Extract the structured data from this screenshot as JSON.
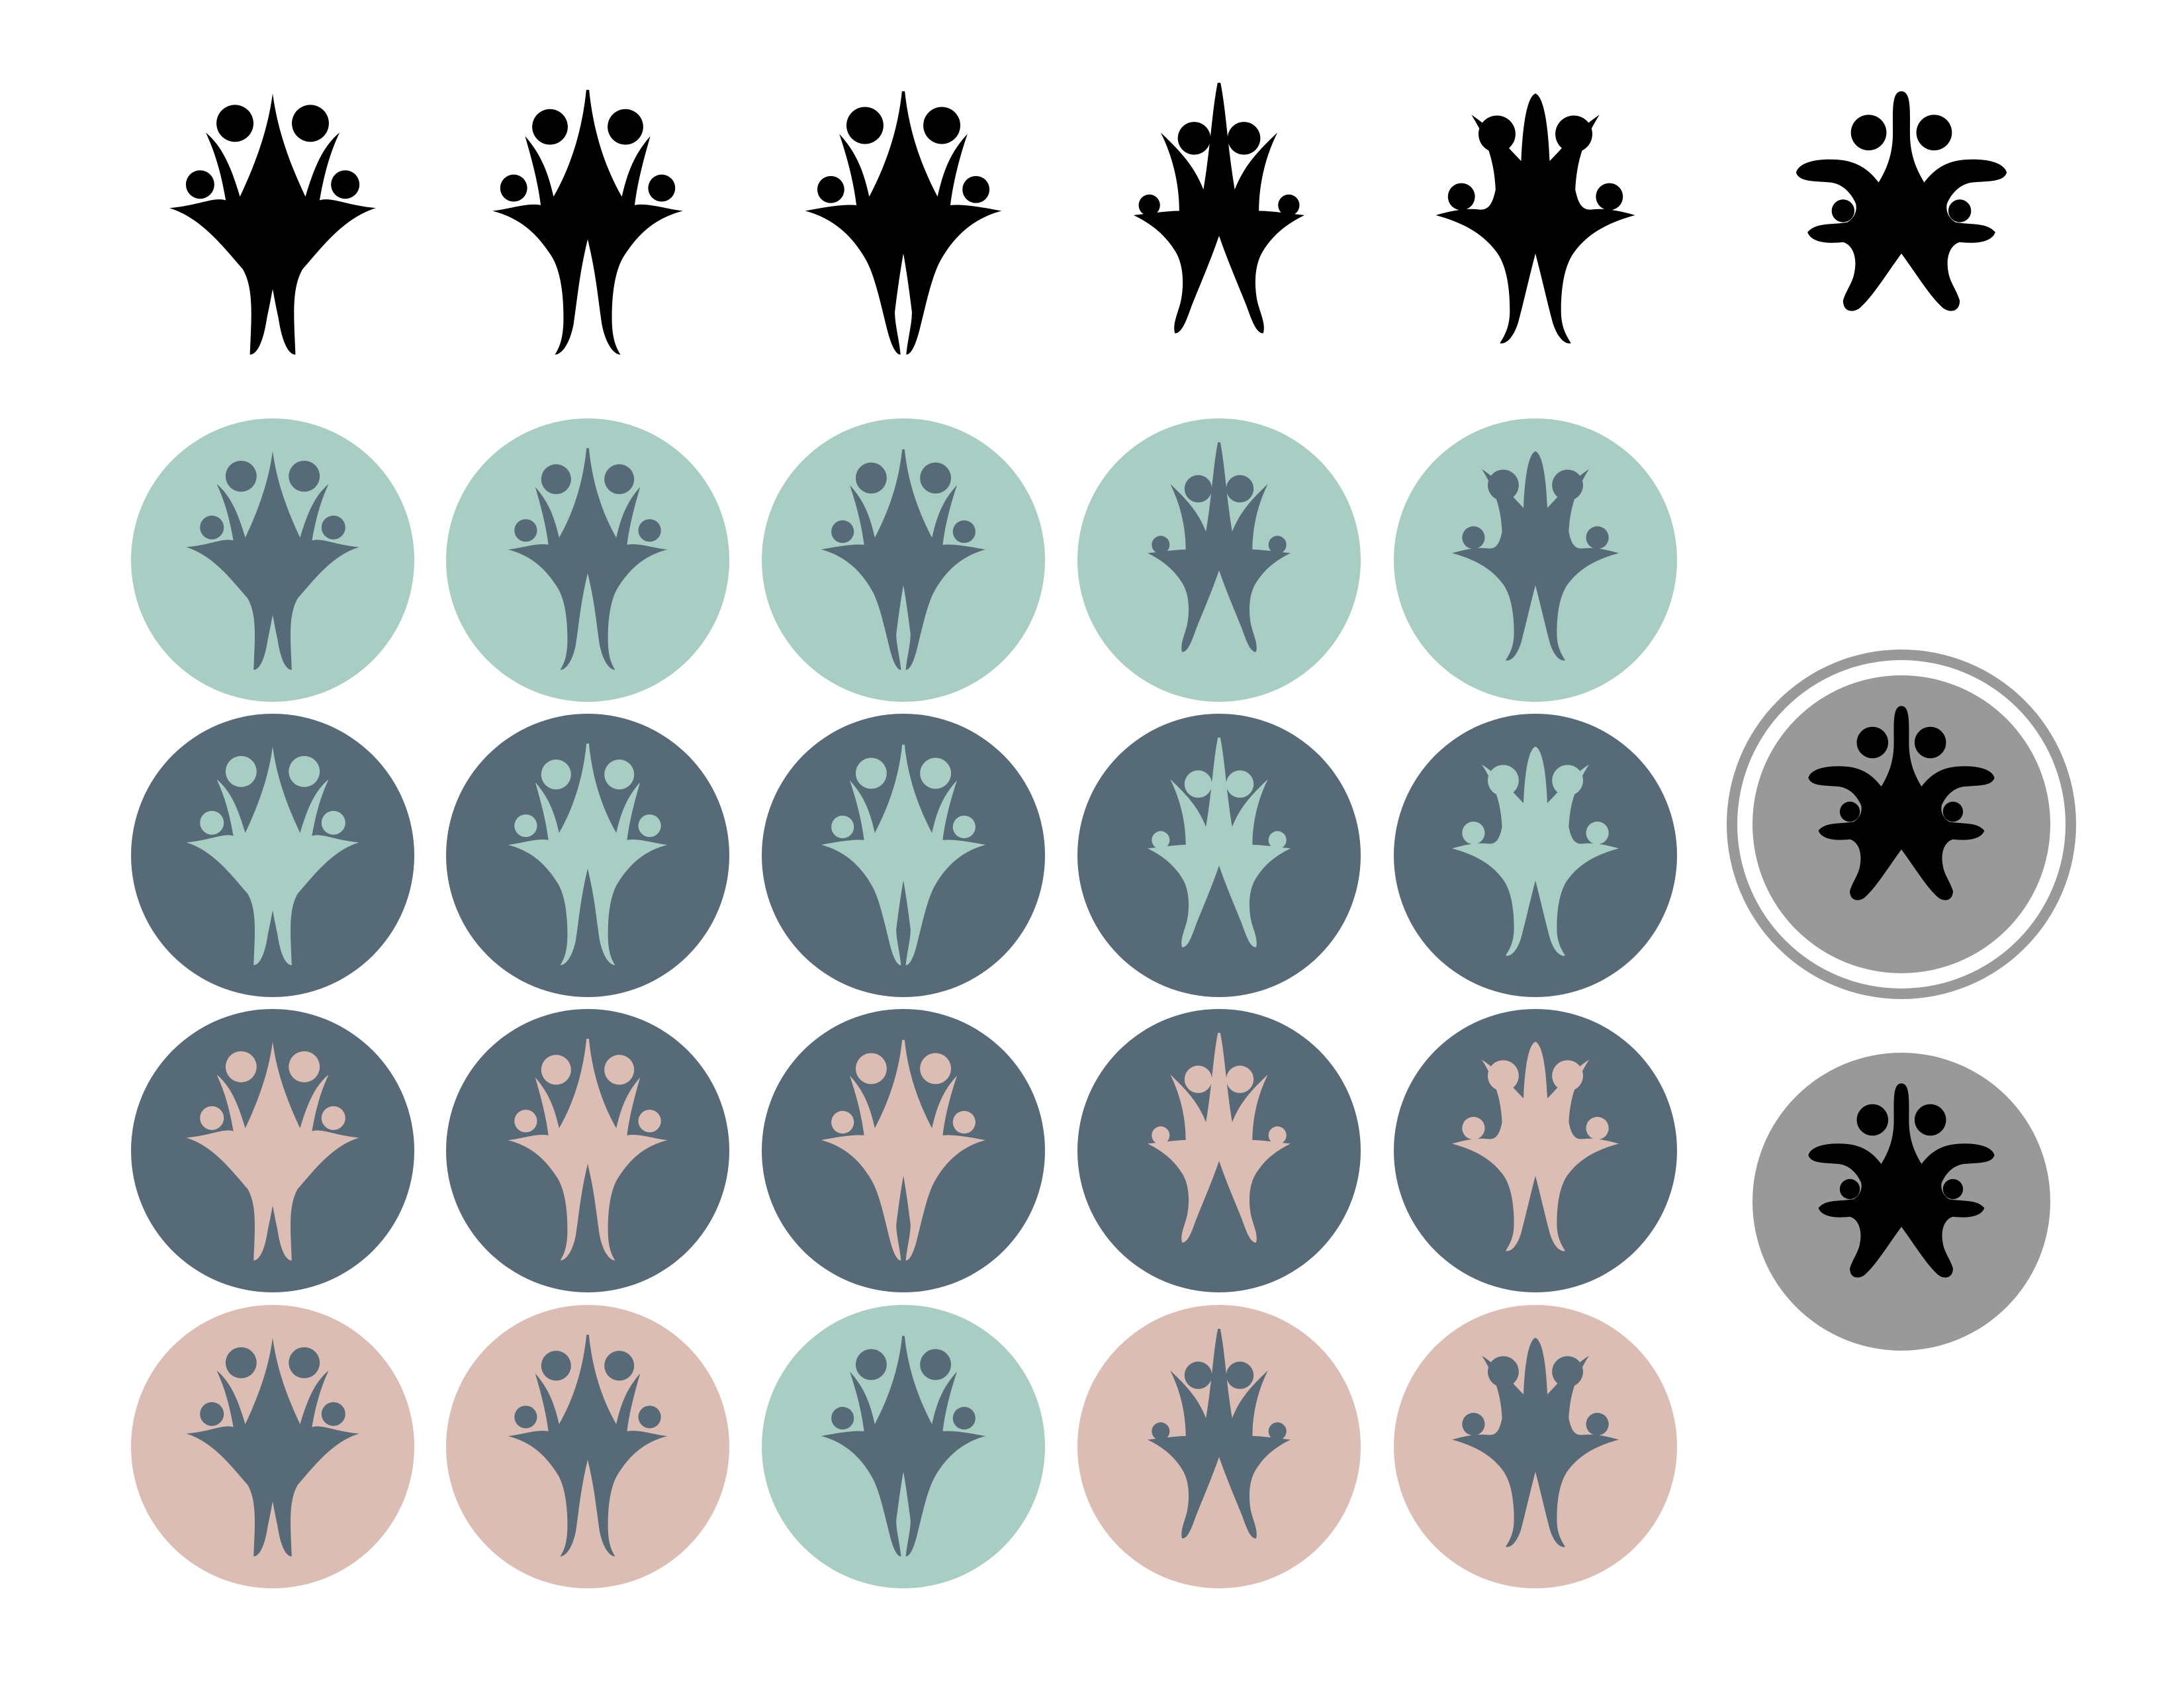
{
  "colors": {
    "background": "#ffffff",
    "black": "#000000",
    "mint": "#a8cdc3",
    "slate": "#576a78",
    "blush": "#dcbdb3",
    "gray": "#999999"
  },
  "glyph_styles": [
    "round",
    "split",
    "fork",
    "tall",
    "arch",
    "flourish"
  ],
  "icon_rows": [
    {
      "name": "black-outline-row",
      "items": [
        {
          "style": "round",
          "fill": "black",
          "badge": "none"
        },
        {
          "style": "split",
          "fill": "black",
          "badge": "none"
        },
        {
          "style": "fork",
          "fill": "black",
          "badge": "none"
        },
        {
          "style": "tall",
          "fill": "black",
          "badge": "none"
        },
        {
          "style": "arch",
          "fill": "black",
          "badge": "none"
        },
        {
          "style": "flourish",
          "fill": "black",
          "badge": "none"
        }
      ]
    },
    {
      "name": "mint-badge-row",
      "items": [
        {
          "style": "round",
          "fill": "slate",
          "badge": "mint"
        },
        {
          "style": "split",
          "fill": "slate",
          "badge": "mint"
        },
        {
          "style": "fork",
          "fill": "slate",
          "badge": "mint"
        },
        {
          "style": "tall",
          "fill": "slate",
          "badge": "mint"
        },
        {
          "style": "arch",
          "fill": "slate",
          "badge": "mint"
        }
      ]
    },
    {
      "name": "slate-mint-row",
      "items": [
        {
          "style": "round",
          "fill": "mint",
          "badge": "slate"
        },
        {
          "style": "split",
          "fill": "mint",
          "badge": "slate"
        },
        {
          "style": "fork",
          "fill": "mint",
          "badge": "slate"
        },
        {
          "style": "tall",
          "fill": "mint",
          "badge": "slate"
        },
        {
          "style": "arch",
          "fill": "mint",
          "badge": "slate"
        }
      ]
    },
    {
      "name": "slate-blush-row",
      "items": [
        {
          "style": "round",
          "fill": "blush",
          "badge": "slate"
        },
        {
          "style": "split",
          "fill": "blush",
          "badge": "slate"
        },
        {
          "style": "fork",
          "fill": "blush",
          "badge": "slate"
        },
        {
          "style": "tall",
          "fill": "blush",
          "badge": "slate"
        },
        {
          "style": "arch",
          "fill": "blush",
          "badge": "slate"
        }
      ]
    },
    {
      "name": "mixed-row",
      "items": [
        {
          "style": "round",
          "fill": "slate",
          "badge": "blush"
        },
        {
          "style": "split",
          "fill": "slate",
          "badge": "blush"
        },
        {
          "style": "fork",
          "fill": "slate",
          "badge": "mint"
        },
        {
          "style": "tall",
          "fill": "slate",
          "badge": "blush"
        },
        {
          "style": "arch",
          "fill": "slate",
          "badge": "blush"
        }
      ]
    }
  ],
  "gray_badges": [
    {
      "style": "flourish",
      "fill": "black",
      "badge": "gray",
      "ring": true
    },
    {
      "style": "flourish",
      "fill": "black",
      "badge": "gray",
      "ring": false
    }
  ]
}
